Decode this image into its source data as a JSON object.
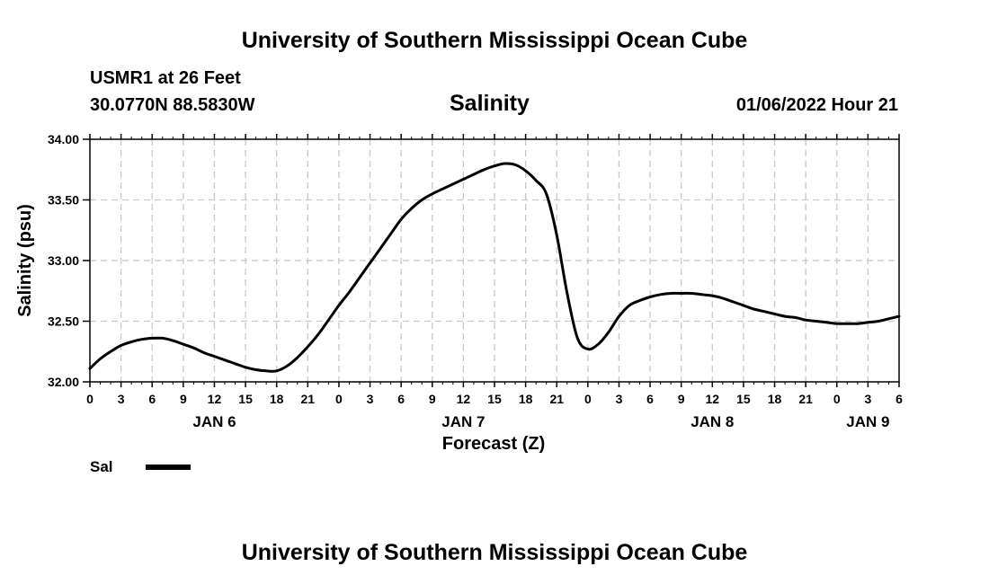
{
  "header": {
    "title_top": "University of Southern Mississippi Ocean Cube",
    "station": "USMR1 at 26 Feet",
    "coords": "30.0770N  88.5830W",
    "datetime": "01/06/2022 Hour 21",
    "title_bottom": "University of Southern Mississippi Ocean Cube"
  },
  "legend": {
    "label": "Sal"
  },
  "chart_data": {
    "type": "line",
    "title": "Salinity",
    "xlabel": "Forecast (Z)",
    "ylabel": "Salinity (psu)",
    "ylim": [
      32.0,
      34.0
    ],
    "xlim": [
      0,
      78
    ],
    "grid": true,
    "yticks": [
      32.0,
      32.5,
      33.0,
      33.5,
      34.0
    ],
    "ytick_labels": [
      "32.00",
      "32.50",
      "33.00",
      "33.50",
      "34.00"
    ],
    "xtick_labels": [
      "0",
      "3",
      "6",
      "9",
      "12",
      "15",
      "18",
      "21",
      "0",
      "3",
      "6",
      "9",
      "12",
      "15",
      "18",
      "21",
      "0",
      "3",
      "6",
      "9",
      "12",
      "15",
      "18",
      "21",
      "0",
      "3",
      "6"
    ],
    "day_labels": [
      {
        "label": "JAN 6",
        "hour": 12
      },
      {
        "label": "JAN 7",
        "hour": 36
      },
      {
        "label": "JAN 8",
        "hour": 60
      },
      {
        "label": "JAN 9",
        "hour": 75
      }
    ],
    "series": [
      {
        "name": "Sal",
        "x": [
          0,
          1,
          2,
          3,
          4,
          5,
          6,
          7,
          8,
          9,
          10,
          11,
          12,
          13,
          14,
          15,
          16,
          17,
          18,
          19,
          20,
          21,
          22,
          23,
          24,
          25,
          26,
          27,
          28,
          29,
          30,
          31,
          32,
          33,
          34,
          35,
          36,
          37,
          38,
          39,
          40,
          41,
          42,
          43,
          44,
          45,
          46,
          47,
          48,
          49,
          50,
          51,
          52,
          53,
          54,
          55,
          56,
          57,
          58,
          59,
          60,
          61,
          62,
          63,
          64,
          65,
          66,
          67,
          68,
          69,
          70,
          71,
          72,
          73,
          74,
          75,
          76,
          77,
          78
        ],
        "values": [
          32.11,
          32.19,
          32.25,
          32.3,
          32.33,
          32.35,
          32.36,
          32.36,
          32.34,
          32.31,
          32.28,
          32.24,
          32.21,
          32.18,
          32.15,
          32.12,
          32.1,
          32.09,
          32.09,
          32.13,
          32.2,
          32.29,
          32.39,
          32.51,
          32.63,
          32.74,
          32.86,
          32.98,
          33.1,
          33.22,
          33.34,
          33.43,
          33.5,
          33.55,
          33.59,
          33.63,
          33.67,
          33.71,
          33.75,
          33.78,
          33.8,
          33.79,
          33.74,
          33.66,
          33.55,
          33.21,
          32.73,
          32.36,
          32.27,
          32.31,
          32.41,
          32.54,
          32.63,
          32.67,
          32.7,
          32.72,
          32.73,
          32.73,
          32.73,
          32.72,
          32.71,
          32.69,
          32.66,
          32.63,
          32.6,
          32.58,
          32.56,
          32.54,
          32.53,
          32.51,
          32.5,
          32.49,
          32.48,
          32.48,
          32.48,
          32.49,
          32.5,
          32.52,
          32.54
        ]
      }
    ]
  }
}
